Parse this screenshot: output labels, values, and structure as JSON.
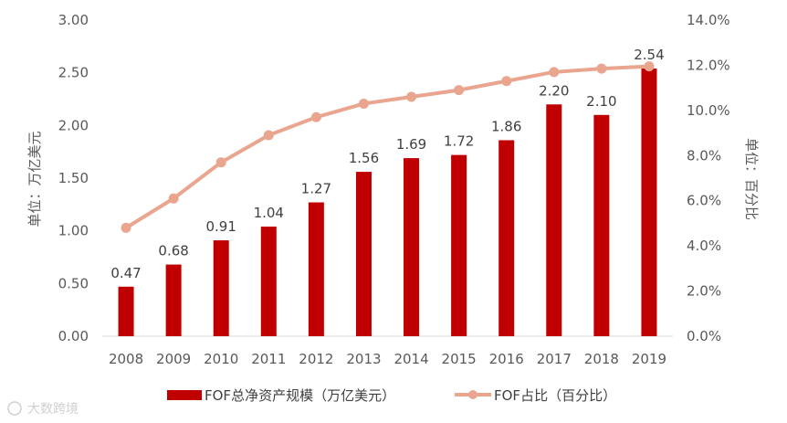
{
  "chart_data": {
    "type": "bar+line",
    "categories": [
      "2008",
      "2009",
      "2010",
      "2011",
      "2012",
      "2013",
      "2014",
      "2015",
      "2016",
      "2017",
      "2018",
      "2019"
    ],
    "series": [
      {
        "name": "FOF总净资产规模（万亿美元）",
        "type": "bar",
        "axis": "left",
        "color": "#c00000",
        "values": [
          0.47,
          0.68,
          0.91,
          1.04,
          1.27,
          1.56,
          1.69,
          1.72,
          1.86,
          2.2,
          2.1,
          2.54
        ],
        "labels": [
          "0.47",
          "0.68",
          "0.91",
          "1.04",
          "1.27",
          "1.56",
          "1.69",
          "1.72",
          "1.86",
          "2.20",
          "2.10",
          "2.54"
        ]
      },
      {
        "name": "FOF占比（百分比）",
        "type": "line",
        "axis": "right",
        "color": "#eaa58f",
        "values": [
          4.8,
          6.1,
          7.7,
          8.9,
          9.7,
          10.3,
          10.6,
          10.9,
          11.3,
          11.7,
          11.85,
          11.95
        ]
      }
    ],
    "y_left": {
      "label": "单位：万亿美元",
      "ylim": [
        0,
        3
      ],
      "ticks": [
        "0.00",
        "0.50",
        "1.00",
        "1.50",
        "2.00",
        "2.50",
        "3.00"
      ]
    },
    "y_right": {
      "label": "单位：百分比",
      "ylim": [
        0,
        14
      ],
      "ticks": [
        "0.0%",
        "2.0%",
        "4.0%",
        "6.0%",
        "8.0%",
        "10.0%",
        "12.0%",
        "14.0%"
      ]
    },
    "grid": false,
    "legend": "bottom"
  },
  "watermark": "大数跨境"
}
